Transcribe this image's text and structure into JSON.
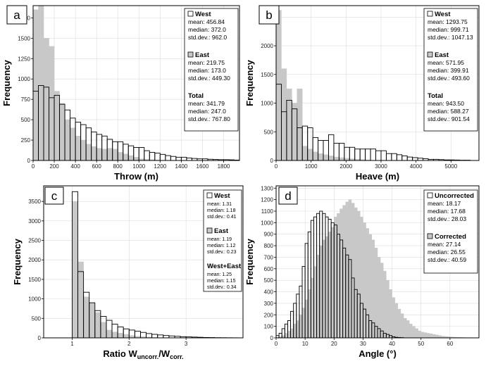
{
  "chart_data": [
    {
      "panel_label": "a",
      "type": "bar",
      "xlabel": "Throw (m)",
      "ylabel": "Frequency",
      "xlim": [
        0,
        1950
      ],
      "ylim": [
        0,
        1900
      ],
      "xticks": [
        0,
        200,
        400,
        600,
        800,
        1000,
        1200,
        1400,
        1600,
        1800
      ],
      "yticks": [
        0,
        250,
        500,
        750,
        1000,
        1250,
        1500,
        1750
      ],
      "bin_width": 50,
      "series": [
        {
          "name": "West",
          "fill": "#ffffff",
          "stroke": "#000000",
          "values": [
            850,
            920,
            900,
            770,
            800,
            690,
            620,
            520,
            470,
            440,
            400,
            350,
            320,
            300,
            260,
            230,
            230,
            200,
            180,
            160,
            160,
            120,
            100,
            90,
            75,
            60,
            50,
            40,
            40,
            30,
            25,
            20,
            20,
            15,
            12,
            10,
            10,
            8,
            5
          ]
        },
        {
          "name": "East",
          "fill": "#c8c8c8",
          "stroke": "#c8c8c8",
          "values": [
            1850,
            1900,
            1500,
            1400,
            850,
            700,
            500,
            400,
            300,
            250,
            200,
            170,
            150,
            140,
            150,
            140,
            100,
            80,
            60,
            40,
            20,
            15,
            10,
            5,
            3,
            2,
            1,
            1,
            0,
            0,
            0,
            0,
            0,
            0,
            0,
            0,
            0,
            0,
            0
          ]
        }
      ],
      "legend": {
        "position": "top-right",
        "groups": [
          {
            "title": "West",
            "swatch": "#ffffff",
            "lines": [
              "mean: 456.84",
              "median: 372.0",
              "std.dev.: 962.0"
            ]
          },
          {
            "title": "East",
            "swatch": "#c8c8c8",
            "lines": [
              "mean: 219.75",
              "median: 173.0",
              "std.dev.: 449.30"
            ]
          },
          {
            "title": "Total",
            "swatch": "",
            "lines": [
              "mean: 341.79",
              "median: 247.0",
              "std.dev.: 767.80"
            ]
          }
        ]
      }
    },
    {
      "panel_label": "b",
      "type": "bar",
      "xlabel": "Heave (m)",
      "ylabel": "Frequency",
      "xlim": [
        0,
        5800
      ],
      "ylim": [
        0,
        2700
      ],
      "xticks": [
        0,
        1000,
        2000,
        3000,
        4000,
        5000
      ],
      "yticks": [
        0,
        500,
        1000,
        1500,
        2000,
        2500
      ],
      "bin_width": 150,
      "series": [
        {
          "name": "West",
          "fill": "#ffffff",
          "stroke": "#000000",
          "values": [
            1330,
            850,
            1050,
            900,
            570,
            600,
            570,
            400,
            350,
            350,
            450,
            300,
            300,
            230,
            230,
            200,
            200,
            200,
            200,
            170,
            170,
            120,
            120,
            100,
            80,
            60,
            50,
            40,
            30,
            20,
            20,
            15,
            10,
            10,
            8,
            5,
            5
          ]
        },
        {
          "name": "East",
          "fill": "#c8c8c8",
          "stroke": "#c8c8c8",
          "values": [
            2620,
            1600,
            1250,
            1000,
            1250,
            250,
            200,
            150,
            120,
            100,
            80,
            60,
            50,
            40,
            30,
            20,
            15,
            10,
            5,
            3,
            0,
            0,
            0,
            0,
            0,
            0,
            0,
            0,
            0,
            0,
            0,
            0,
            0,
            0,
            0,
            0,
            0
          ]
        }
      ],
      "legend": {
        "position": "top-right",
        "groups": [
          {
            "title": "West",
            "swatch": "#ffffff",
            "lines": [
              "mean: 1293.75",
              "median: 999.71",
              "std.dev.: 1047.13"
            ]
          },
          {
            "title": "East",
            "swatch": "#c8c8c8",
            "lines": [
              "mean: 571.95",
              "median: 399.91",
              "std.dev.: 493.60"
            ]
          },
          {
            "title": "Total",
            "swatch": "",
            "lines": [
              "mean: 943.50",
              "median: 588.27",
              "std.dev.: 901.54"
            ]
          }
        ]
      }
    },
    {
      "panel_label": "c",
      "type": "bar",
      "xlabel": "Ratio W",
      "xlabel_sub1": "uncorr.",
      "xlabel_mid": "/W",
      "xlabel_sub2": "corr.",
      "ylabel": "Frequency",
      "xlim": [
        0.5,
        4.0
      ],
      "ylim": [
        0,
        3900
      ],
      "xticks": [
        1,
        2,
        3
      ],
      "yticks": [
        0,
        500,
        1000,
        1500,
        2000,
        2500,
        3000,
        3500
      ],
      "bin_width": 0.1,
      "bin_start": 1.0,
      "series": [
        {
          "name": "West",
          "fill": "#ffffff",
          "stroke": "#000000",
          "values": [
            3750,
            1700,
            1170,
            900,
            700,
            550,
            450,
            350,
            280,
            230,
            200,
            170,
            140,
            110,
            90,
            75,
            60,
            50,
            40,
            30,
            25,
            20,
            15,
            10,
            8,
            5,
            4,
            3,
            2,
            1
          ]
        },
        {
          "name": "East",
          "fill": "#c8c8c8",
          "stroke": "#c8c8c8",
          "values": [
            3500,
            1950,
            1050,
            900,
            650,
            400,
            200,
            150,
            120,
            90,
            60,
            40,
            30,
            20,
            10,
            5,
            3,
            2,
            0,
            0,
            0,
            0,
            0,
            0,
            0,
            0,
            0,
            0,
            0,
            0
          ]
        }
      ],
      "legend": {
        "position": "top-right",
        "groups": [
          {
            "title": "West",
            "swatch": "#ffffff",
            "lines": [
              "mean: 1.31",
              "median: 1.18",
              "std.dev.: 0.41"
            ]
          },
          {
            "title": "East",
            "swatch": "#c8c8c8",
            "lines": [
              "mean: 1.19",
              "median: 1.12",
              "std.dev.: 0.23"
            ]
          },
          {
            "title": "West+East",
            "swatch": "",
            "lines": [
              "mean: 1.25",
              "median: 1.15",
              "std.dev.: 0.34"
            ]
          }
        ]
      }
    },
    {
      "panel_label": "d",
      "type": "bar",
      "xlabel": "Angle (°)",
      "ylabel": "Frequency",
      "xlim": [
        0,
        70
      ],
      "ylim": [
        0,
        1320
      ],
      "xticks": [
        0,
        10,
        20,
        30,
        40,
        50,
        60
      ],
      "yticks": [
        0,
        100,
        200,
        300,
        400,
        500,
        600,
        700,
        800,
        900,
        1000,
        1100,
        1200,
        1300
      ],
      "bin_width": 1,
      "series": [
        {
          "name": "Uncorrected",
          "fill": "#ffffff",
          "stroke": "#000000",
          "values": [
            20,
            40,
            80,
            120,
            150,
            230,
            300,
            380,
            450,
            620,
            820,
            920,
            1020,
            1050,
            1080,
            1100,
            1080,
            1050,
            1030,
            1000,
            980,
            900,
            850,
            780,
            720,
            680,
            520,
            420,
            380,
            300,
            250,
            200,
            150,
            130,
            100,
            80,
            60,
            40,
            30,
            20,
            10,
            5,
            3,
            2
          ]
        },
        {
          "name": "Corrected",
          "fill": "#c8c8c8",
          "stroke": "#c8c8c8",
          "values": [
            5,
            10,
            20,
            40,
            60,
            80,
            120,
            150,
            200,
            260,
            330,
            420,
            520,
            620,
            720,
            800,
            850,
            880,
            920,
            960,
            1050,
            1080,
            1120,
            1150,
            1180,
            1200,
            1170,
            1130,
            1100,
            1050,
            1000,
            950,
            900,
            850,
            780,
            700,
            650,
            580,
            500,
            420,
            350,
            300,
            250,
            210,
            170,
            150,
            120,
            100,
            80,
            60,
            50,
            45,
            40,
            35,
            30,
            25,
            20,
            15,
            12,
            10,
            8,
            6,
            5,
            4,
            3,
            2,
            1
          ]
        }
      ],
      "legend": {
        "position": "top-right",
        "groups": [
          {
            "title": "Uncorrected",
            "swatch": "#ffffff",
            "lines": [
              "mean: 18.17",
              "median: 17.68",
              "std.dev.: 28.03"
            ]
          },
          {
            "title": "Corrected",
            "swatch": "#c8c8c8",
            "lines": [
              "mean: 27.14",
              "median: 26.55",
              "std.dev.: 40.59"
            ]
          }
        ]
      }
    }
  ]
}
